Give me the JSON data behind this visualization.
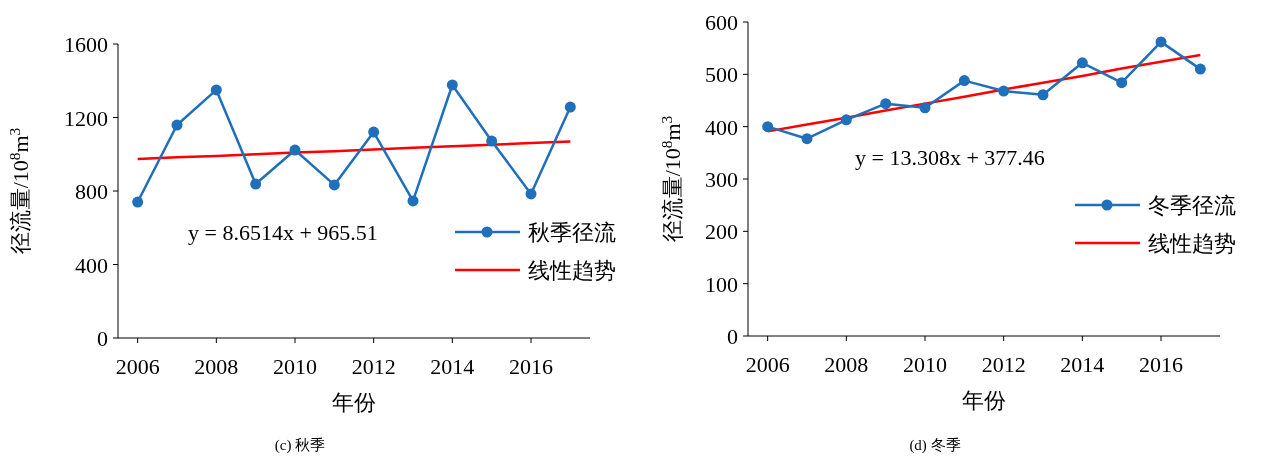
{
  "chart_data": [
    {
      "type": "line",
      "xlabel": "年份",
      "ylabel": "径流量/10$^{8}$m$^{3}$",
      "x": [
        2006,
        2007,
        2008,
        2009,
        2010,
        2011,
        2012,
        2013,
        2014,
        2015,
        2016,
        2017
      ],
      "xlim": [
        2005.5,
        2017.5
      ],
      "xticks": [
        2006,
        2008,
        2010,
        2012,
        2014,
        2016
      ],
      "ylim": [
        0,
        1600
      ],
      "yticks": [
        0,
        400,
        800,
        1200,
        1600
      ],
      "marker": "circle",
      "legend": "right",
      "grid": false,
      "series": [
        {
          "name": "秋季径流",
          "color": "#1f6fba",
          "values": [
            740,
            1159,
            1350,
            838,
            1023,
            833,
            1121,
            746,
            1377,
            1072,
            784,
            1257
          ]
        },
        {
          "name": "线性趋势",
          "type": "line",
          "color": "#ff0000",
          "marker": "none",
          "values": [
            974,
            983,
            991,
            1000,
            1009,
            1017,
            1026,
            1035,
            1043,
            1052,
            1061,
            1069
          ]
        }
      ],
      "annotations": [
        "y = 8.6514x + 965.51",
        "(c)  秋季"
      ]
    },
    {
      "type": "line",
      "xlabel": "年份",
      "ylabel": "径流量/10$^{8}$m$^{3}$",
      "x": [
        2006,
        2007,
        2008,
        2009,
        2010,
        2011,
        2012,
        2013,
        2014,
        2015,
        2016,
        2017
      ],
      "xlim": [
        2005.5,
        2017.5
      ],
      "xticks": [
        2006,
        2008,
        2010,
        2012,
        2014,
        2016
      ],
      "ylim": [
        0,
        600
      ],
      "yticks": [
        0,
        100,
        200,
        300,
        400,
        500,
        600
      ],
      "marker": "circle",
      "legend": "right",
      "grid": false,
      "series": [
        {
          "name": "冬季径流",
          "color": "#1f6fba",
          "values": [
            400,
            377,
            413,
            444,
            436,
            488,
            468,
            461,
            522,
            484,
            562,
            510
          ]
        },
        {
          "name": "线性趋势",
          "type": "line",
          "color": "#ff0000",
          "marker": "none",
          "values": [
            391,
            404,
            417,
            431,
            444,
            457,
            471,
            484,
            497,
            511,
            524,
            537
          ]
        }
      ],
      "annotations": [
        "y = 13.308x + 377.46",
        "(d)  冬季"
      ]
    }
  ]
}
